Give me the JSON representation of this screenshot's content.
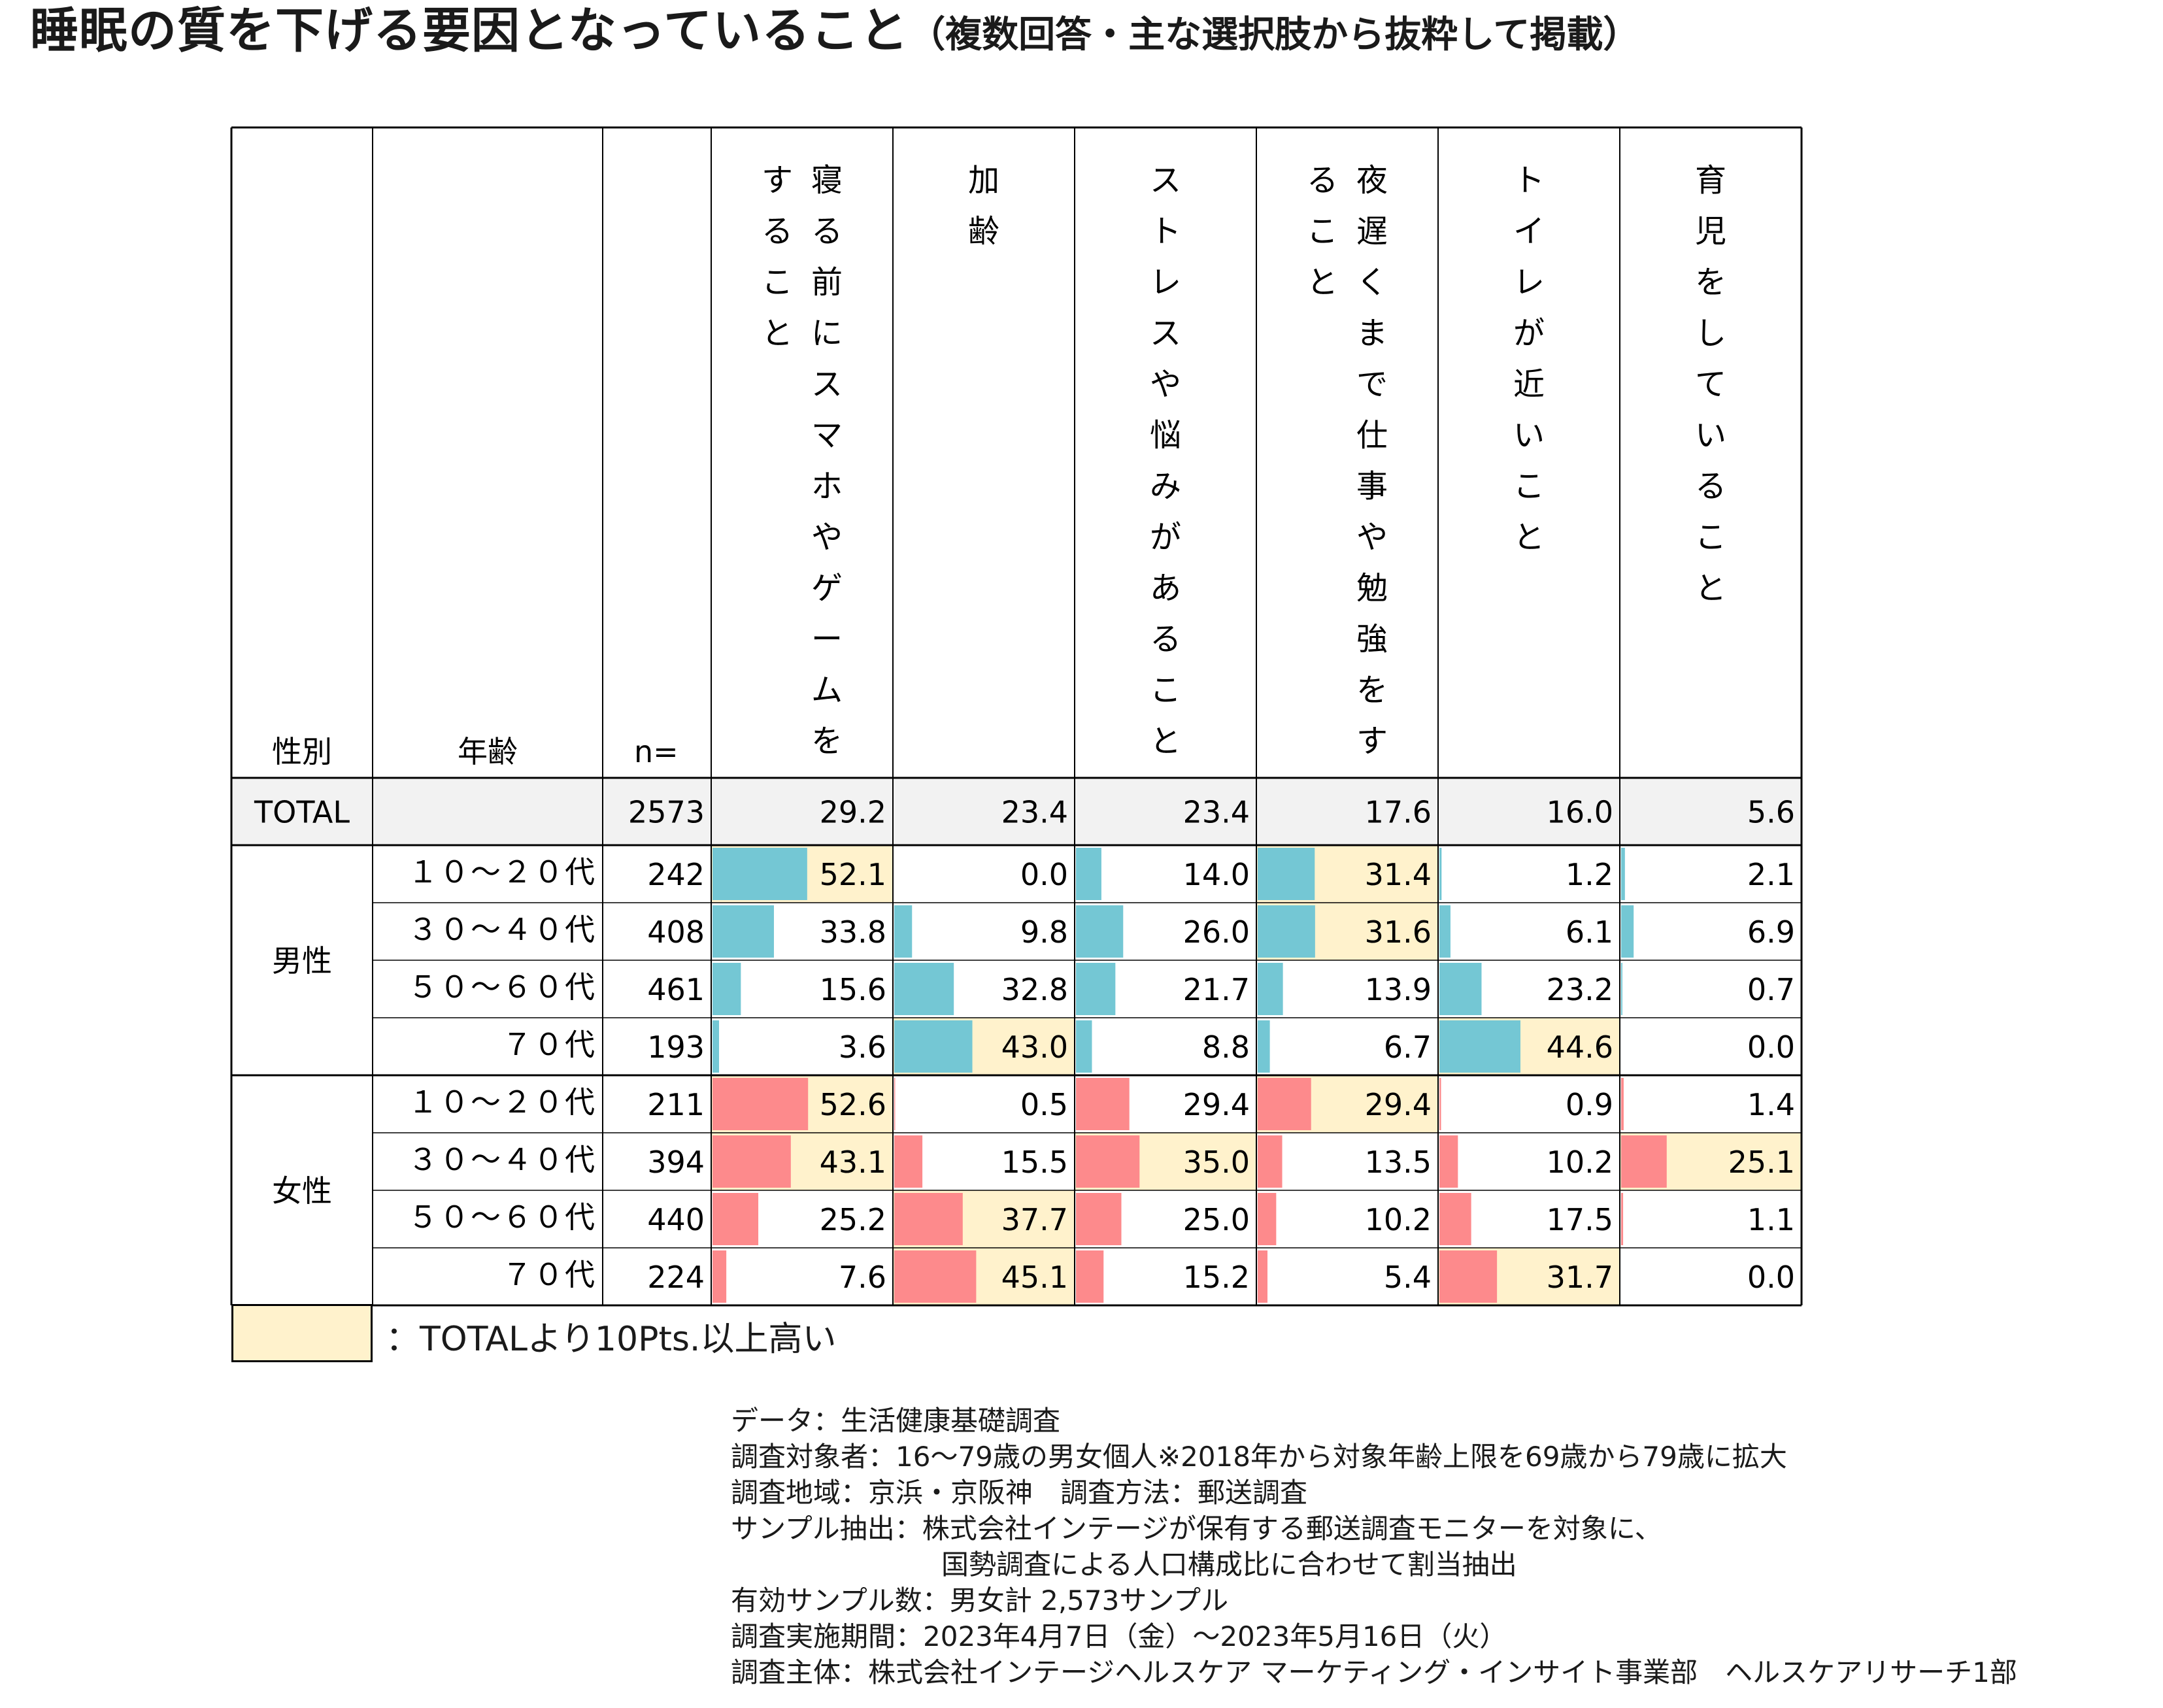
{
  "title": {
    "main": "睡眠の質を下げる要因となっていること",
    "sub": "（複数回答・主な選択肢から抜粋して掲載）"
  },
  "colors": {
    "male_bar": "#74c7d4",
    "female_bar": "#fd8a8c",
    "highlight": "#fff2cc",
    "total_row": "#f2f2f2",
    "border": "#000000"
  },
  "chart_data": {
    "type": "table",
    "header": {
      "gender": "性別",
      "age": "年齢",
      "n": "n="
    },
    "columns": [
      "寝る前にスマホやゲームをすること",
      "加齢",
      "ストレスや悩みがあること",
      "夜遅くまで仕事や勉強をすること",
      "トイレが近いこと",
      "育児をしていること"
    ],
    "column_lines": [
      [
        "寝る前にスマホやゲームを",
        "すること"
      ],
      [
        "加齢"
      ],
      [
        "ストレスや悩みがあること"
      ],
      [
        "夜遅くまで仕事や勉強をす",
        "ること"
      ],
      [
        "トイレが近いこと"
      ],
      [
        "育児をしていること"
      ]
    ],
    "total": {
      "label": "TOTAL",
      "n": "2573",
      "values": [
        "29.2",
        "23.4",
        "23.4",
        "17.6",
        "16.0",
        "5.6"
      ]
    },
    "groups": [
      {
        "gender": "男性",
        "bar_color": "#74c7d4",
        "rows": [
          {
            "age": "１０～２０代",
            "n": "242",
            "values": [
              "52.1",
              "0.0",
              "14.0",
              "31.4",
              "1.2",
              "2.1"
            ]
          },
          {
            "age": "３０～４０代",
            "n": "408",
            "values": [
              "33.8",
              "9.8",
              "26.0",
              "31.6",
              "6.1",
              "6.9"
            ]
          },
          {
            "age": "５０～６０代",
            "n": "461",
            "values": [
              "15.6",
              "32.8",
              "21.7",
              "13.9",
              "23.2",
              "0.7"
            ]
          },
          {
            "age": "７０代",
            "n": "193",
            "values": [
              "3.6",
              "43.0",
              "8.8",
              "6.7",
              "44.6",
              "0.0"
            ]
          }
        ]
      },
      {
        "gender": "女性",
        "bar_color": "#fd8a8c",
        "rows": [
          {
            "age": "１０～２０代",
            "n": "211",
            "values": [
              "52.6",
              "0.5",
              "29.4",
              "29.4",
              "0.9",
              "1.4"
            ]
          },
          {
            "age": "３０～４０代",
            "n": "394",
            "values": [
              "43.1",
              "15.5",
              "35.0",
              "13.5",
              "10.2",
              "25.1"
            ]
          },
          {
            "age": "５０～６０代",
            "n": "440",
            "values": [
              "25.2",
              "37.7",
              "25.0",
              "10.2",
              "17.5",
              "1.1"
            ]
          },
          {
            "age": "７０代",
            "n": "224",
            "values": [
              "7.6",
              "45.1",
              "15.2",
              "5.4",
              "31.7",
              "0.0"
            ]
          }
        ]
      }
    ],
    "highlight_rule_pts": 10,
    "bar_scale_max": 100
  },
  "legend": {
    "text": "：TOTALより10Pts.以上高い"
  },
  "notes": [
    "データ：生活健康基礎調査",
    "調査対象者：16～79歳の男女個人※2018年から対象年齢上限を69歳から79歳に拡大",
    "調査地域：京浜・京阪神　調査方法：郵送調査",
    "サンプル抽出：株式会社インテージが保有する郵送調査モニターを対象に、",
    "国勢調査による人口構成比に合わせて割当抽出",
    "有効サンプル数：男女計 2,573サンプル",
    "調査実施期間：2023年4月7日（金）～2023年5月16日（火）",
    "調査主体：株式会社インテージヘルスケア マーケティング・インサイト事業部　ヘルスケアリサーチ1部"
  ]
}
